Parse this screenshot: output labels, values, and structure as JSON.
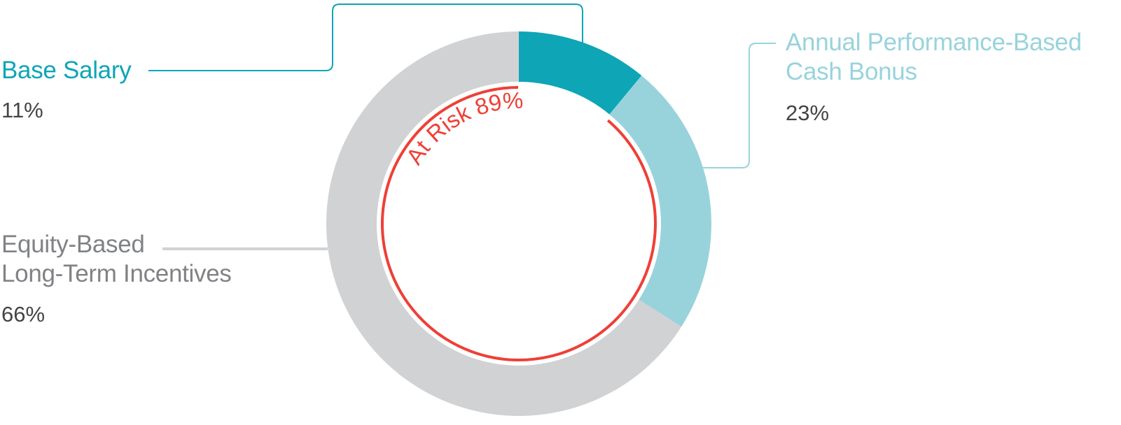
{
  "chart_data": {
    "type": "pie",
    "donut": true,
    "slices": [
      {
        "label": "Base Salary",
        "value": 11,
        "value_label": "11%",
        "color": "#0ea5b6"
      },
      {
        "label": "Annual Performance-Based Cash Bonus",
        "label_lines": [
          "Annual Performance-Based",
          "Cash Bonus"
        ],
        "value": 23,
        "value_label": "23%",
        "color": "#98d3dc"
      },
      {
        "label": "Equity-Based Long-Term Incentives",
        "label_lines": [
          "Equity-Based",
          "Long-Term Incentives"
        ],
        "value": 66,
        "value_label": "66%",
        "color": "#d1d2d4"
      }
    ],
    "annotation": {
      "text": "At Risk 89%",
      "value": 89,
      "color": "#ee4037"
    }
  }
}
